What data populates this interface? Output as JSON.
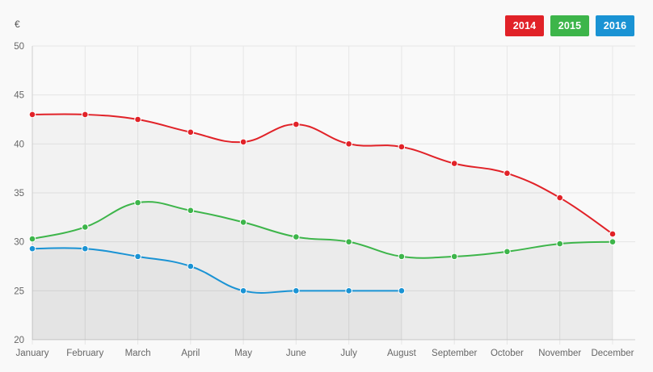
{
  "chart_data": {
    "type": "line",
    "ylabel": "€",
    "ylim": [
      20,
      50
    ],
    "yticks": [
      20,
      25,
      30,
      35,
      40,
      45,
      50
    ],
    "categories": [
      "January",
      "February",
      "March",
      "April",
      "May",
      "June",
      "July",
      "August",
      "September",
      "October",
      "November",
      "December"
    ],
    "grid": true,
    "legend_position": "top-right",
    "series": [
      {
        "name": "2014",
        "color": "#e12228",
        "values": [
          43,
          43,
          42.5,
          41.2,
          40.2,
          42,
          40,
          39.7,
          38,
          37,
          34.5,
          30.8
        ]
      },
      {
        "name": "2015",
        "color": "#3db54a",
        "values": [
          30.3,
          31.5,
          34,
          33.2,
          32,
          30.5,
          30,
          28.5,
          28.5,
          29,
          29.8,
          30
        ]
      },
      {
        "name": "2016",
        "color": "#1a93d4",
        "values": [
          29.3,
          29.3,
          28.5,
          27.5,
          25,
          25,
          25,
          25,
          null,
          null,
          null,
          null
        ]
      }
    ]
  }
}
